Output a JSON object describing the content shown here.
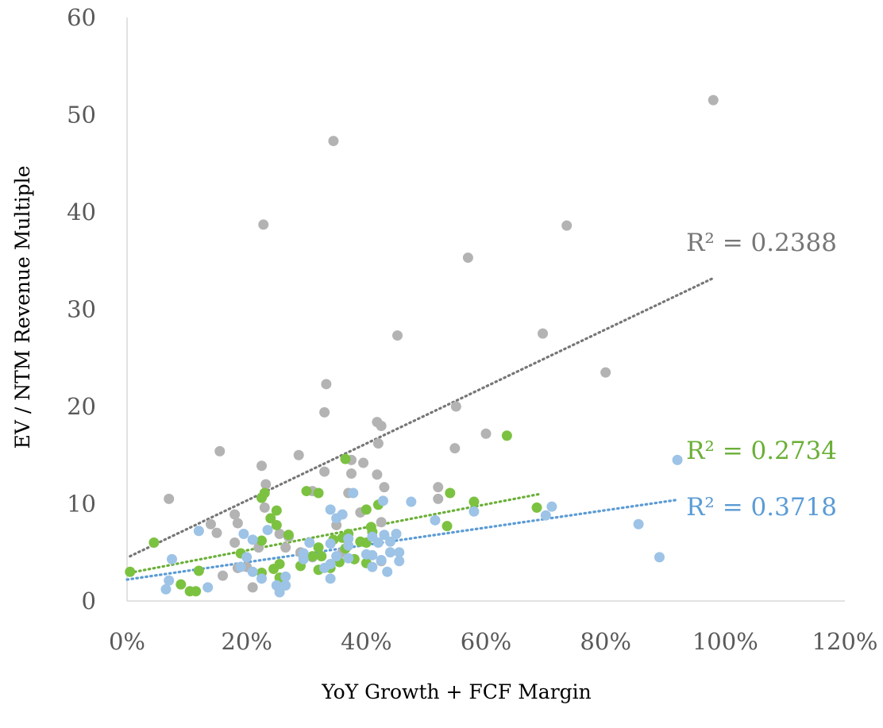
{
  "chart_data": {
    "type": "scatter",
    "title": "",
    "xlabel": "YoY Growth + FCF Margin",
    "ylabel": "EV / NTM Revenue Multiple",
    "xlim": [
      0,
      1.2
    ],
    "ylim": [
      0,
      60
    ],
    "x_ticks": [
      "0%",
      "20%",
      "40%",
      "60%",
      "80%",
      "100%",
      "120%"
    ],
    "y_ticks": [
      "0",
      "10",
      "20",
      "30",
      "40",
      "50",
      "60"
    ],
    "grid": false,
    "legend": "none",
    "series": [
      {
        "color": "#b3b3b3",
        "trend_color": "#767676",
        "r2_label": "R² = 0.2388",
        "trend": {
          "x0": 0.005,
          "y0": 4.6,
          "x1": 0.98,
          "y1": 33.2
        },
        "points": [
          [
            0.98,
            51.5
          ],
          [
            0.345,
            47.3
          ],
          [
            0.228,
            38.7
          ],
          [
            0.735,
            38.6
          ],
          [
            0.57,
            35.3
          ],
          [
            0.695,
            27.5
          ],
          [
            0.452,
            27.3
          ],
          [
            0.8,
            23.5
          ],
          [
            0.333,
            22.3
          ],
          [
            0.33,
            19.4
          ],
          [
            0.55,
            20.0
          ],
          [
            0.418,
            18.4
          ],
          [
            0.425,
            18.0
          ],
          [
            0.6,
            17.2
          ],
          [
            0.42,
            16.2
          ],
          [
            0.548,
            15.7
          ],
          [
            0.155,
            15.4
          ],
          [
            0.287,
            15.0
          ],
          [
            0.375,
            14.5
          ],
          [
            0.395,
            14.2
          ],
          [
            0.225,
            13.9
          ],
          [
            0.33,
            13.3
          ],
          [
            0.375,
            13.1
          ],
          [
            0.418,
            13.0
          ],
          [
            0.232,
            12.0
          ],
          [
            0.52,
            11.7
          ],
          [
            0.43,
            11.7
          ],
          [
            0.31,
            11.3
          ],
          [
            0.37,
            11.1
          ],
          [
            0.52,
            10.5
          ],
          [
            0.07,
            10.5
          ],
          [
            0.23,
            9.6
          ],
          [
            0.18,
            8.9
          ],
          [
            0.39,
            9.1
          ],
          [
            0.14,
            7.9
          ],
          [
            0.185,
            8.0
          ],
          [
            0.425,
            8.1
          ],
          [
            0.35,
            7.8
          ],
          [
            0.15,
            7.0
          ],
          [
            0.255,
            6.9
          ],
          [
            0.27,
            6.6
          ],
          [
            0.18,
            6.0
          ],
          [
            0.22,
            5.5
          ],
          [
            0.265,
            5.5
          ],
          [
            0.29,
            5.0
          ],
          [
            0.36,
            5.0
          ],
          [
            0.31,
            4.5
          ],
          [
            0.38,
            4.3
          ],
          [
            0.425,
            4.1
          ],
          [
            0.2,
            3.5
          ],
          [
            0.185,
            3.4
          ],
          [
            0.16,
            2.6
          ],
          [
            0.21,
            1.4
          ]
        ]
      },
      {
        "color": "#7cc241",
        "trend_color": "#6aaf37",
        "r2_label": "R² = 0.2734",
        "trend": {
          "x0": 0.005,
          "y0": 2.9,
          "x1": 0.69,
          "y1": 11.0
        },
        "points": [
          [
            0.635,
            17.0
          ],
          [
            0.365,
            14.6
          ],
          [
            0.3,
            11.3
          ],
          [
            0.32,
            11.1
          ],
          [
            0.54,
            11.1
          ],
          [
            0.23,
            11.1
          ],
          [
            0.225,
            10.6
          ],
          [
            0.58,
            10.2
          ],
          [
            0.42,
            9.9
          ],
          [
            0.685,
            9.6
          ],
          [
            0.4,
            9.4
          ],
          [
            0.25,
            9.3
          ],
          [
            0.24,
            8.5
          ],
          [
            0.25,
            7.8
          ],
          [
            0.408,
            7.6
          ],
          [
            0.535,
            7.7
          ],
          [
            0.41,
            7.1
          ],
          [
            0.37,
            6.9
          ],
          [
            0.27,
            6.8
          ],
          [
            0.36,
            6.5
          ],
          [
            0.345,
            6.3
          ],
          [
            0.225,
            6.2
          ],
          [
            0.39,
            6.1
          ],
          [
            0.045,
            6.0
          ],
          [
            0.4,
            6.0
          ],
          [
            0.32,
            5.5
          ],
          [
            0.365,
            5.4
          ],
          [
            0.19,
            4.9
          ],
          [
            0.31,
            4.6
          ],
          [
            0.325,
            4.6
          ],
          [
            0.38,
            4.3
          ],
          [
            0.355,
            4.0
          ],
          [
            0.4,
            3.9
          ],
          [
            0.255,
            3.8
          ],
          [
            0.29,
            3.6
          ],
          [
            0.34,
            3.4
          ],
          [
            0.245,
            3.3
          ],
          [
            0.32,
            3.2
          ],
          [
            0.12,
            3.1
          ],
          [
            0.005,
            3.0
          ],
          [
            0.225,
            2.9
          ],
          [
            0.255,
            2.4
          ],
          [
            0.09,
            1.7
          ],
          [
            0.115,
            1.0
          ],
          [
            0.105,
            1.0
          ]
        ]
      },
      {
        "color": "#9dc3e6",
        "trend_color": "#5b9bd5",
        "r2_label": "R² = 0.3718",
        "trend": {
          "x0": 0.0,
          "y0": 2.2,
          "x1": 0.92,
          "y1": 10.4
        },
        "points": [
          [
            0.92,
            14.5
          ],
          [
            0.378,
            11.1
          ],
          [
            0.428,
            10.3
          ],
          [
            0.475,
            10.2
          ],
          [
            0.71,
            9.7
          ],
          [
            0.34,
            9.4
          ],
          [
            0.58,
            9.2
          ],
          [
            0.36,
            8.9
          ],
          [
            0.35,
            8.5
          ],
          [
            0.7,
            8.8
          ],
          [
            0.515,
            8.3
          ],
          [
            0.855,
            7.9
          ],
          [
            0.12,
            7.2
          ],
          [
            0.235,
            7.3
          ],
          [
            0.195,
            6.9
          ],
          [
            0.45,
            6.9
          ],
          [
            0.43,
            6.8
          ],
          [
            0.41,
            6.6
          ],
          [
            0.37,
            6.4
          ],
          [
            0.21,
            6.3
          ],
          [
            0.44,
            6.1
          ],
          [
            0.305,
            6.0
          ],
          [
            0.42,
            6.0
          ],
          [
            0.34,
            5.9
          ],
          [
            0.37,
            5.7
          ],
          [
            0.455,
            5.0
          ],
          [
            0.44,
            5.0
          ],
          [
            0.295,
            4.9
          ],
          [
            0.4,
            4.8
          ],
          [
            0.41,
            4.7
          ],
          [
            0.35,
            4.6
          ],
          [
            0.295,
            4.3
          ],
          [
            0.075,
            4.3
          ],
          [
            0.2,
            4.5
          ],
          [
            0.37,
            4.4
          ],
          [
            0.425,
            4.2
          ],
          [
            0.455,
            4.1
          ],
          [
            0.89,
            4.5
          ],
          [
            0.34,
            3.8
          ],
          [
            0.41,
            3.5
          ],
          [
            0.33,
            3.4
          ],
          [
            0.19,
            3.5
          ],
          [
            0.21,
            3.0
          ],
          [
            0.435,
            3.0
          ],
          [
            0.265,
            2.5
          ],
          [
            0.34,
            2.3
          ],
          [
            0.225,
            2.3
          ],
          [
            0.07,
            2.1
          ],
          [
            0.25,
            1.6
          ],
          [
            0.265,
            1.6
          ],
          [
            0.135,
            1.4
          ],
          [
            0.065,
            1.2
          ],
          [
            0.255,
            0.9
          ]
        ]
      }
    ]
  }
}
